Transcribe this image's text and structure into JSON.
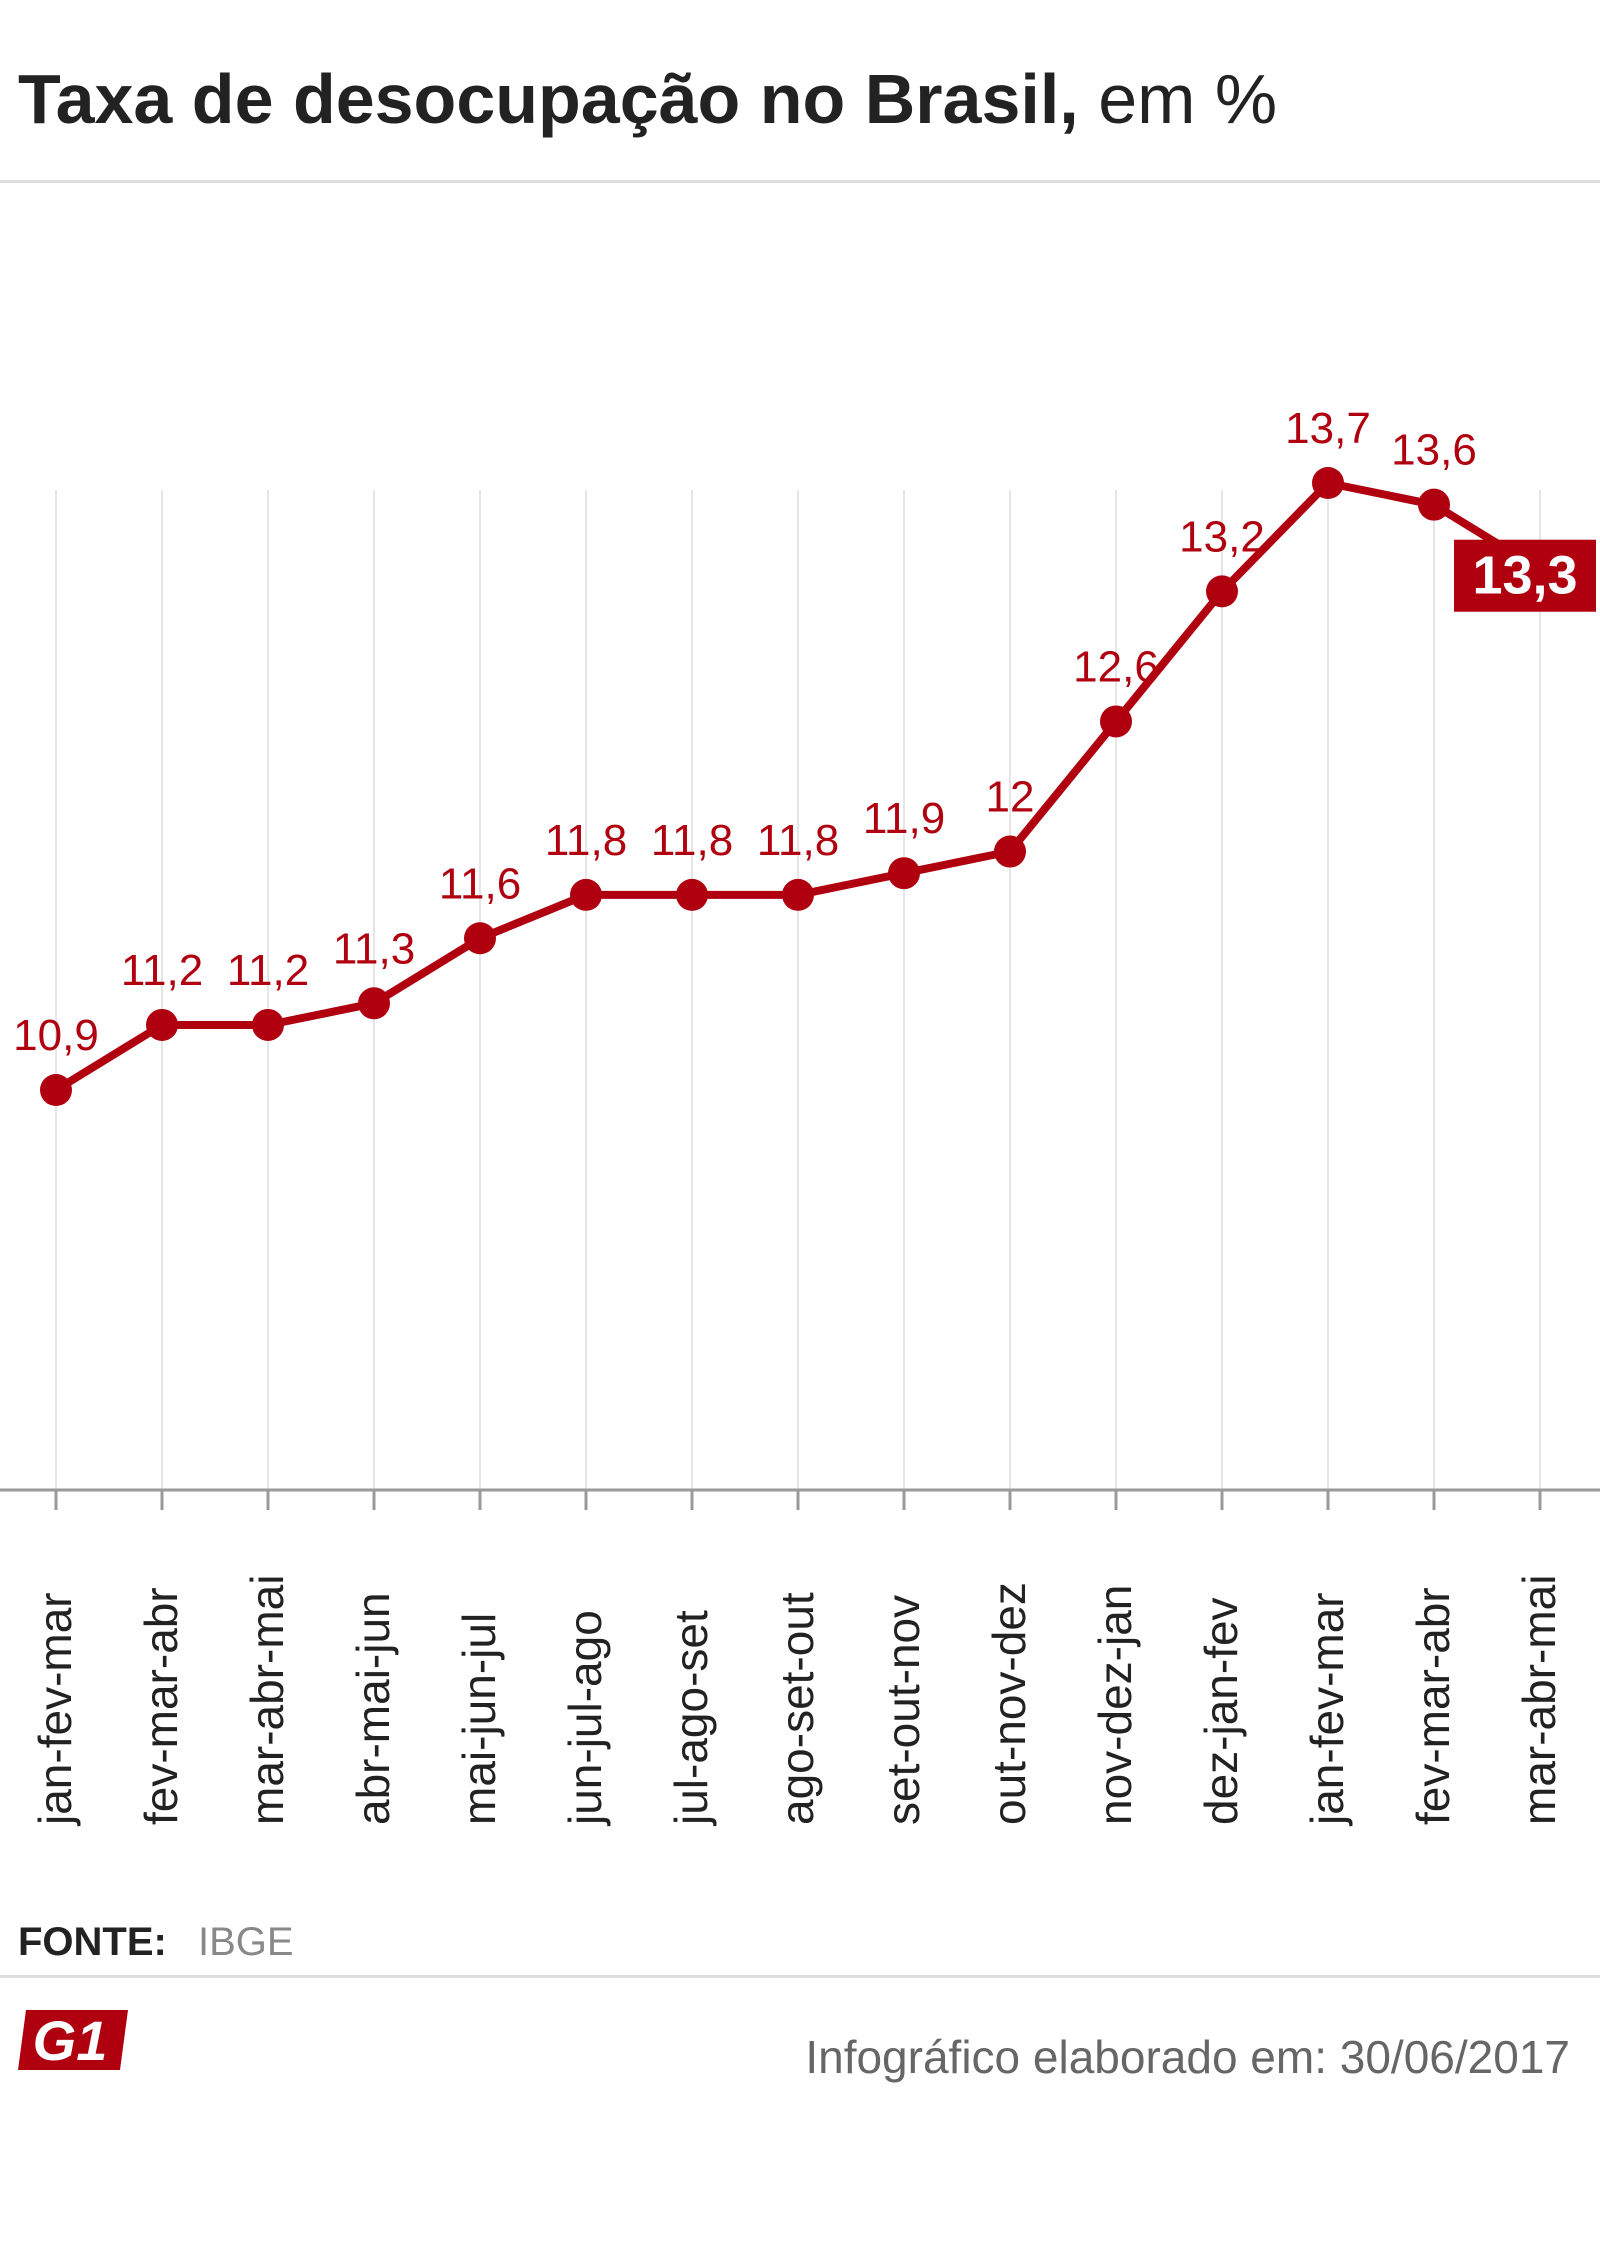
{
  "header": {
    "title_bold": "Taxa de desocupação no Brasil,",
    "title_light": "em %"
  },
  "colors": {
    "accent": "#b0000f",
    "grid": "#e6e6e6",
    "text_dark": "#222222",
    "text_muted": "#888888"
  },
  "chart_data": {
    "type": "line",
    "title": "Taxa de desocupação no Brasil, em %",
    "categories": [
      "jan-fev-mar",
      "fev-mar-abr",
      "mar-abr-mai",
      "abr-mai-jun",
      "mai-jun-jul",
      "jun-jul-ago",
      "jul-ago-set",
      "ago-set-out",
      "set-out-nov",
      "out-nov-dez",
      "nov-dez-jan",
      "dez-jan-fev",
      "jan-fev-mar",
      "fev-mar-abr",
      "mar-abr-mai"
    ],
    "values": [
      10.9,
      11.2,
      11.2,
      11.3,
      11.6,
      11.8,
      11.8,
      11.8,
      11.9,
      12,
      12.6,
      13.2,
      13.7,
      13.6,
      13.3
    ],
    "value_labels": [
      "10,9",
      "11,2",
      "11,2",
      "11,3",
      "11,6",
      "11,8",
      "11,8",
      "11,8",
      "11,9",
      "12",
      "12,6",
      "13,2",
      "13,7",
      "13,6",
      "13,3"
    ],
    "highlight_index": 14,
    "grid": "vertical",
    "legend": "none"
  },
  "footer": {
    "source_label": "FONTE:",
    "source_value": "IBGE",
    "logo_text": "G1",
    "note": "Infográfico elaborado em: 30/06/2017"
  }
}
